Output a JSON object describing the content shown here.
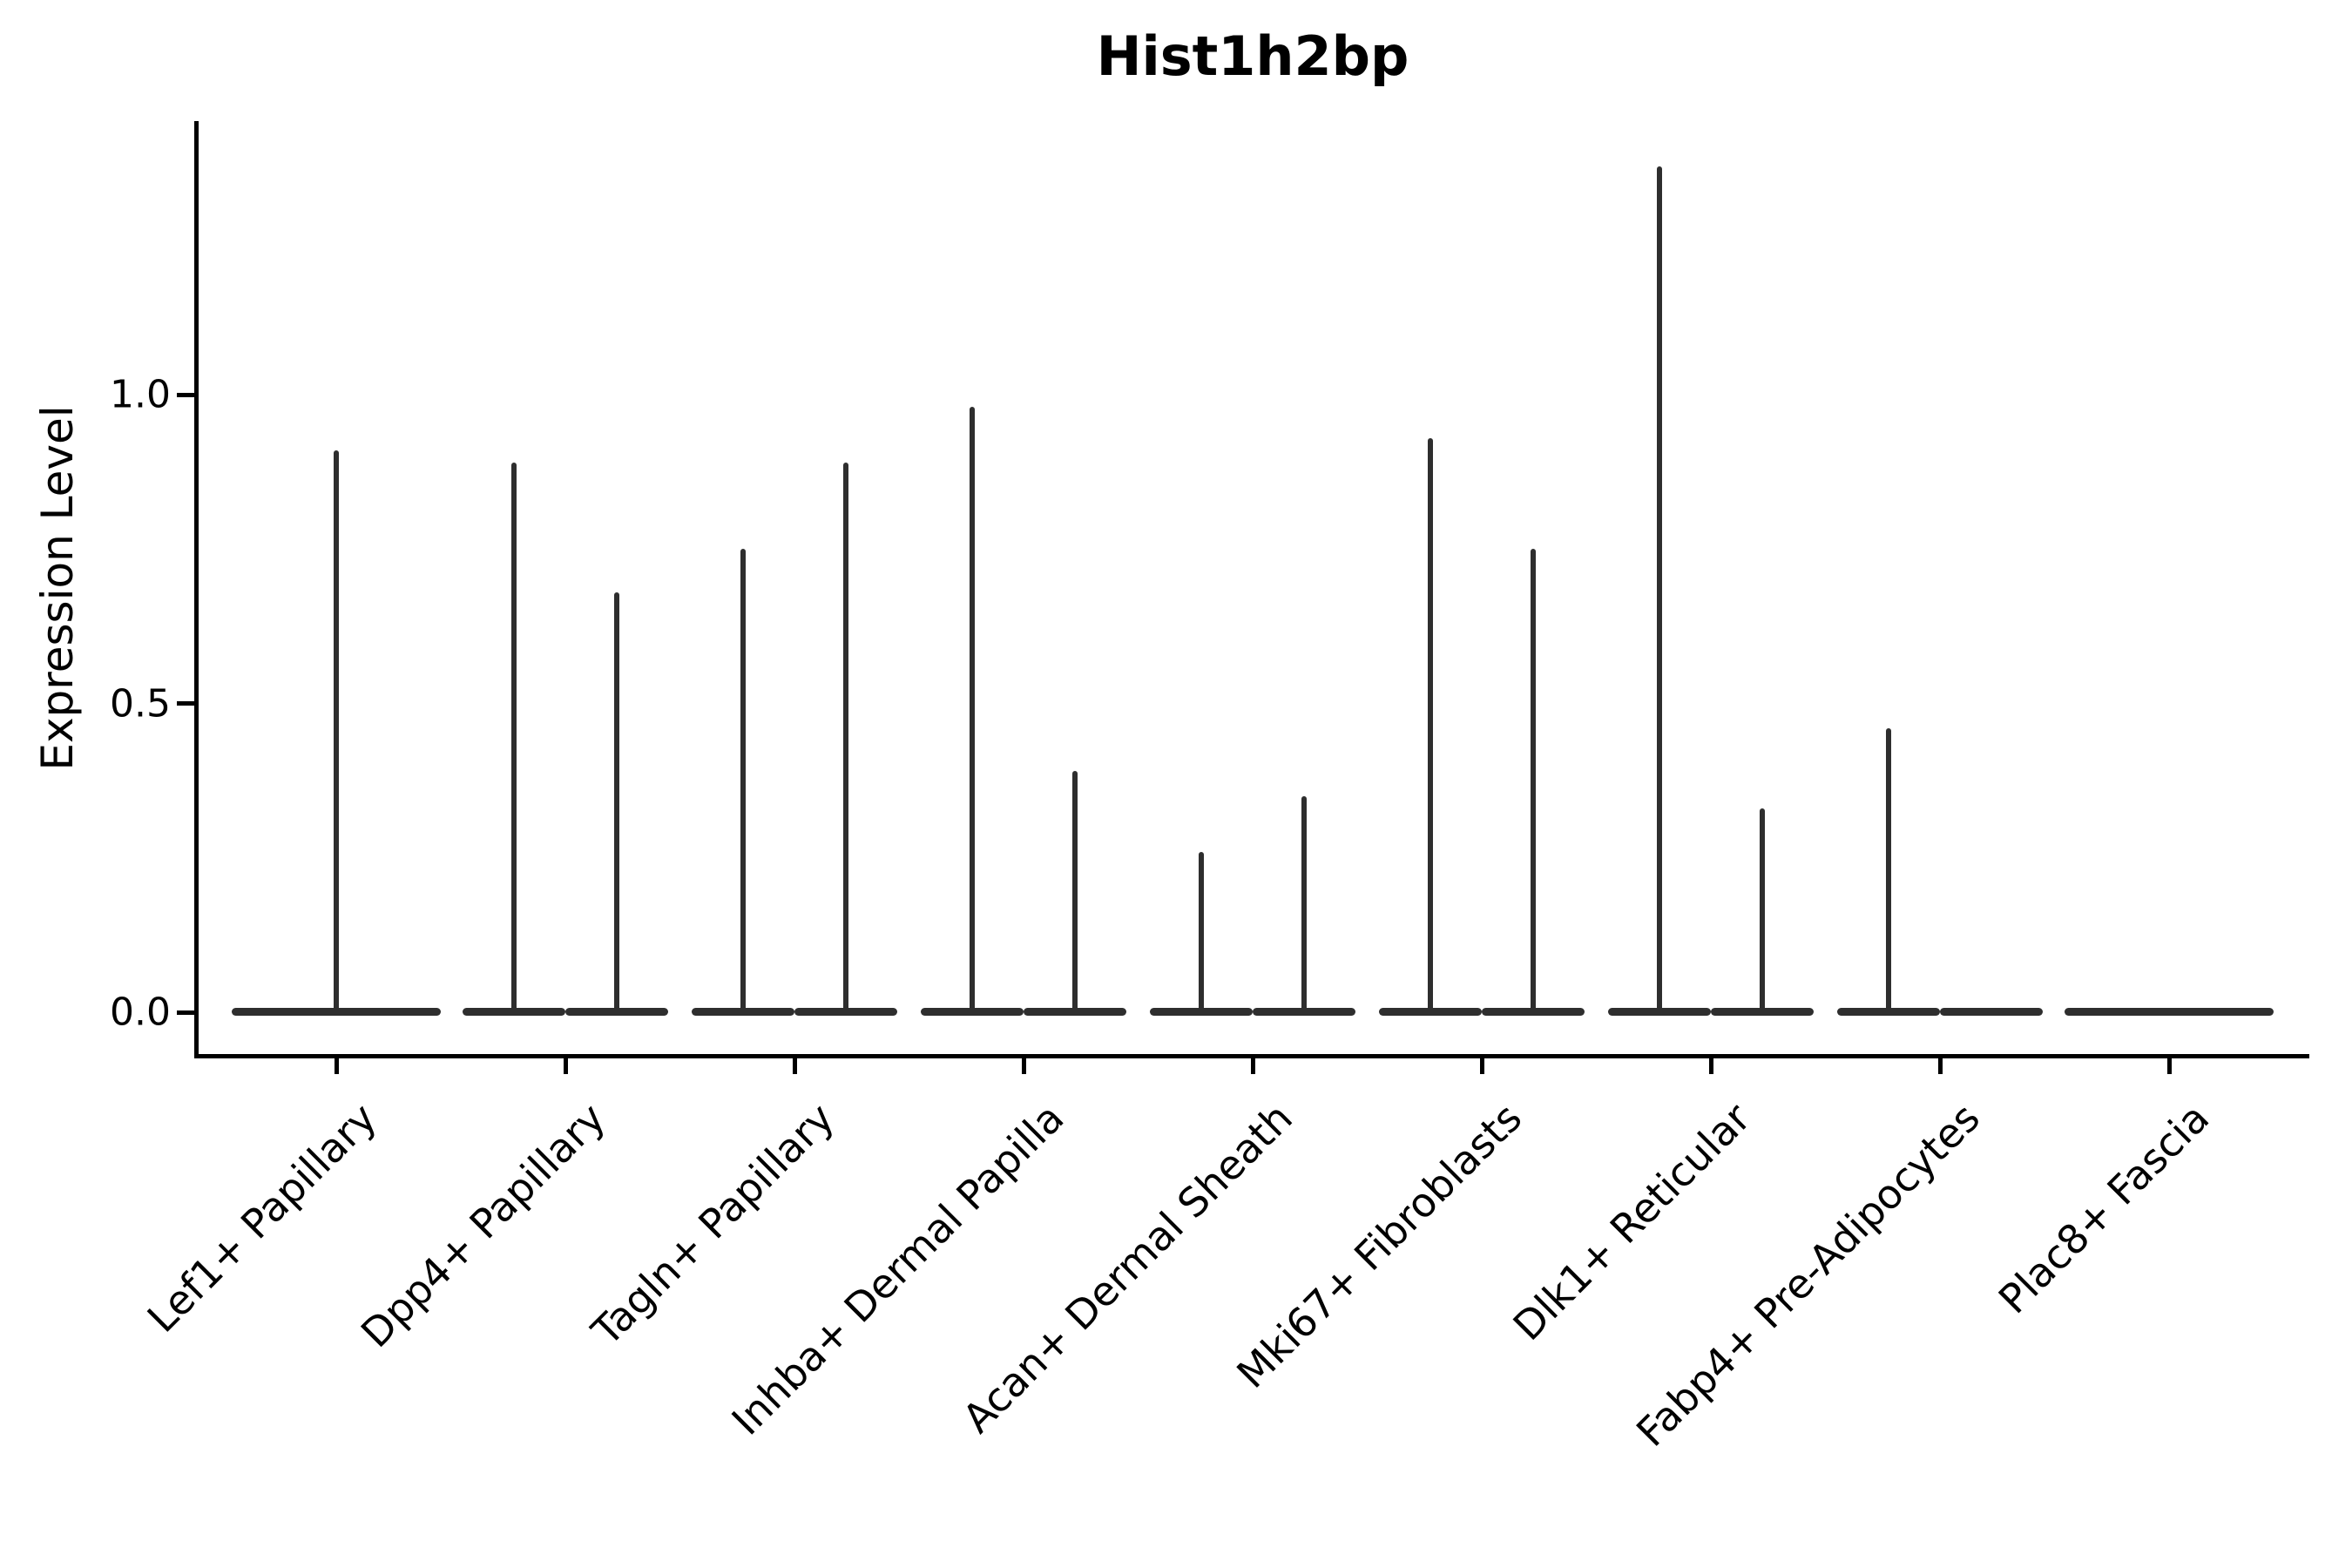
{
  "figure": {
    "title": "Hist1h2bp",
    "ylabel": "Expression Level"
  },
  "chart_data": {
    "type": "violin",
    "title": "Hist1h2bp",
    "xlabel": "",
    "ylabel": "Expression Level",
    "categories": [
      "Lef1+ Papillary",
      "Dpp4+ Papillary",
      "Tagln+ Papillary",
      "Inhba+ Dermal Papilla",
      "Acan+ Dermal Sheath",
      "Mki67+ Fibroblasts",
      "Dlk1+ Reticular",
      "Fabp4+ Pre-Adipocytes",
      "Plac8+ Fascia"
    ],
    "violins_per_category": [
      [
        0.91
      ],
      [
        0.89,
        0.68
      ],
      [
        0.75,
        0.89
      ],
      [
        0.98,
        0.39
      ],
      [
        0.26,
        0.35
      ],
      [
        0.93,
        0.75
      ],
      [
        1.37,
        0.33
      ],
      [
        0.46,
        0.0
      ],
      [
        0.0
      ]
    ],
    "violin_description": "Each violin is collapsed flat at expression 0 with a thin density spike rising to the listed maximum value; categories with two entries contain two side-by-side violins, categories with one entry contain a single full-width violin.",
    "ytick_labels": [
      "0.0",
      "0.5",
      "1.0"
    ],
    "ytick_values": [
      0.0,
      0.5,
      1.0
    ],
    "ylim": [
      -0.07,
      1.44
    ],
    "grid": false,
    "legend": null
  },
  "style": {
    "violin_color": "#2e2e2e",
    "axis_color": "#000000",
    "background_color": "#ffffff"
  }
}
